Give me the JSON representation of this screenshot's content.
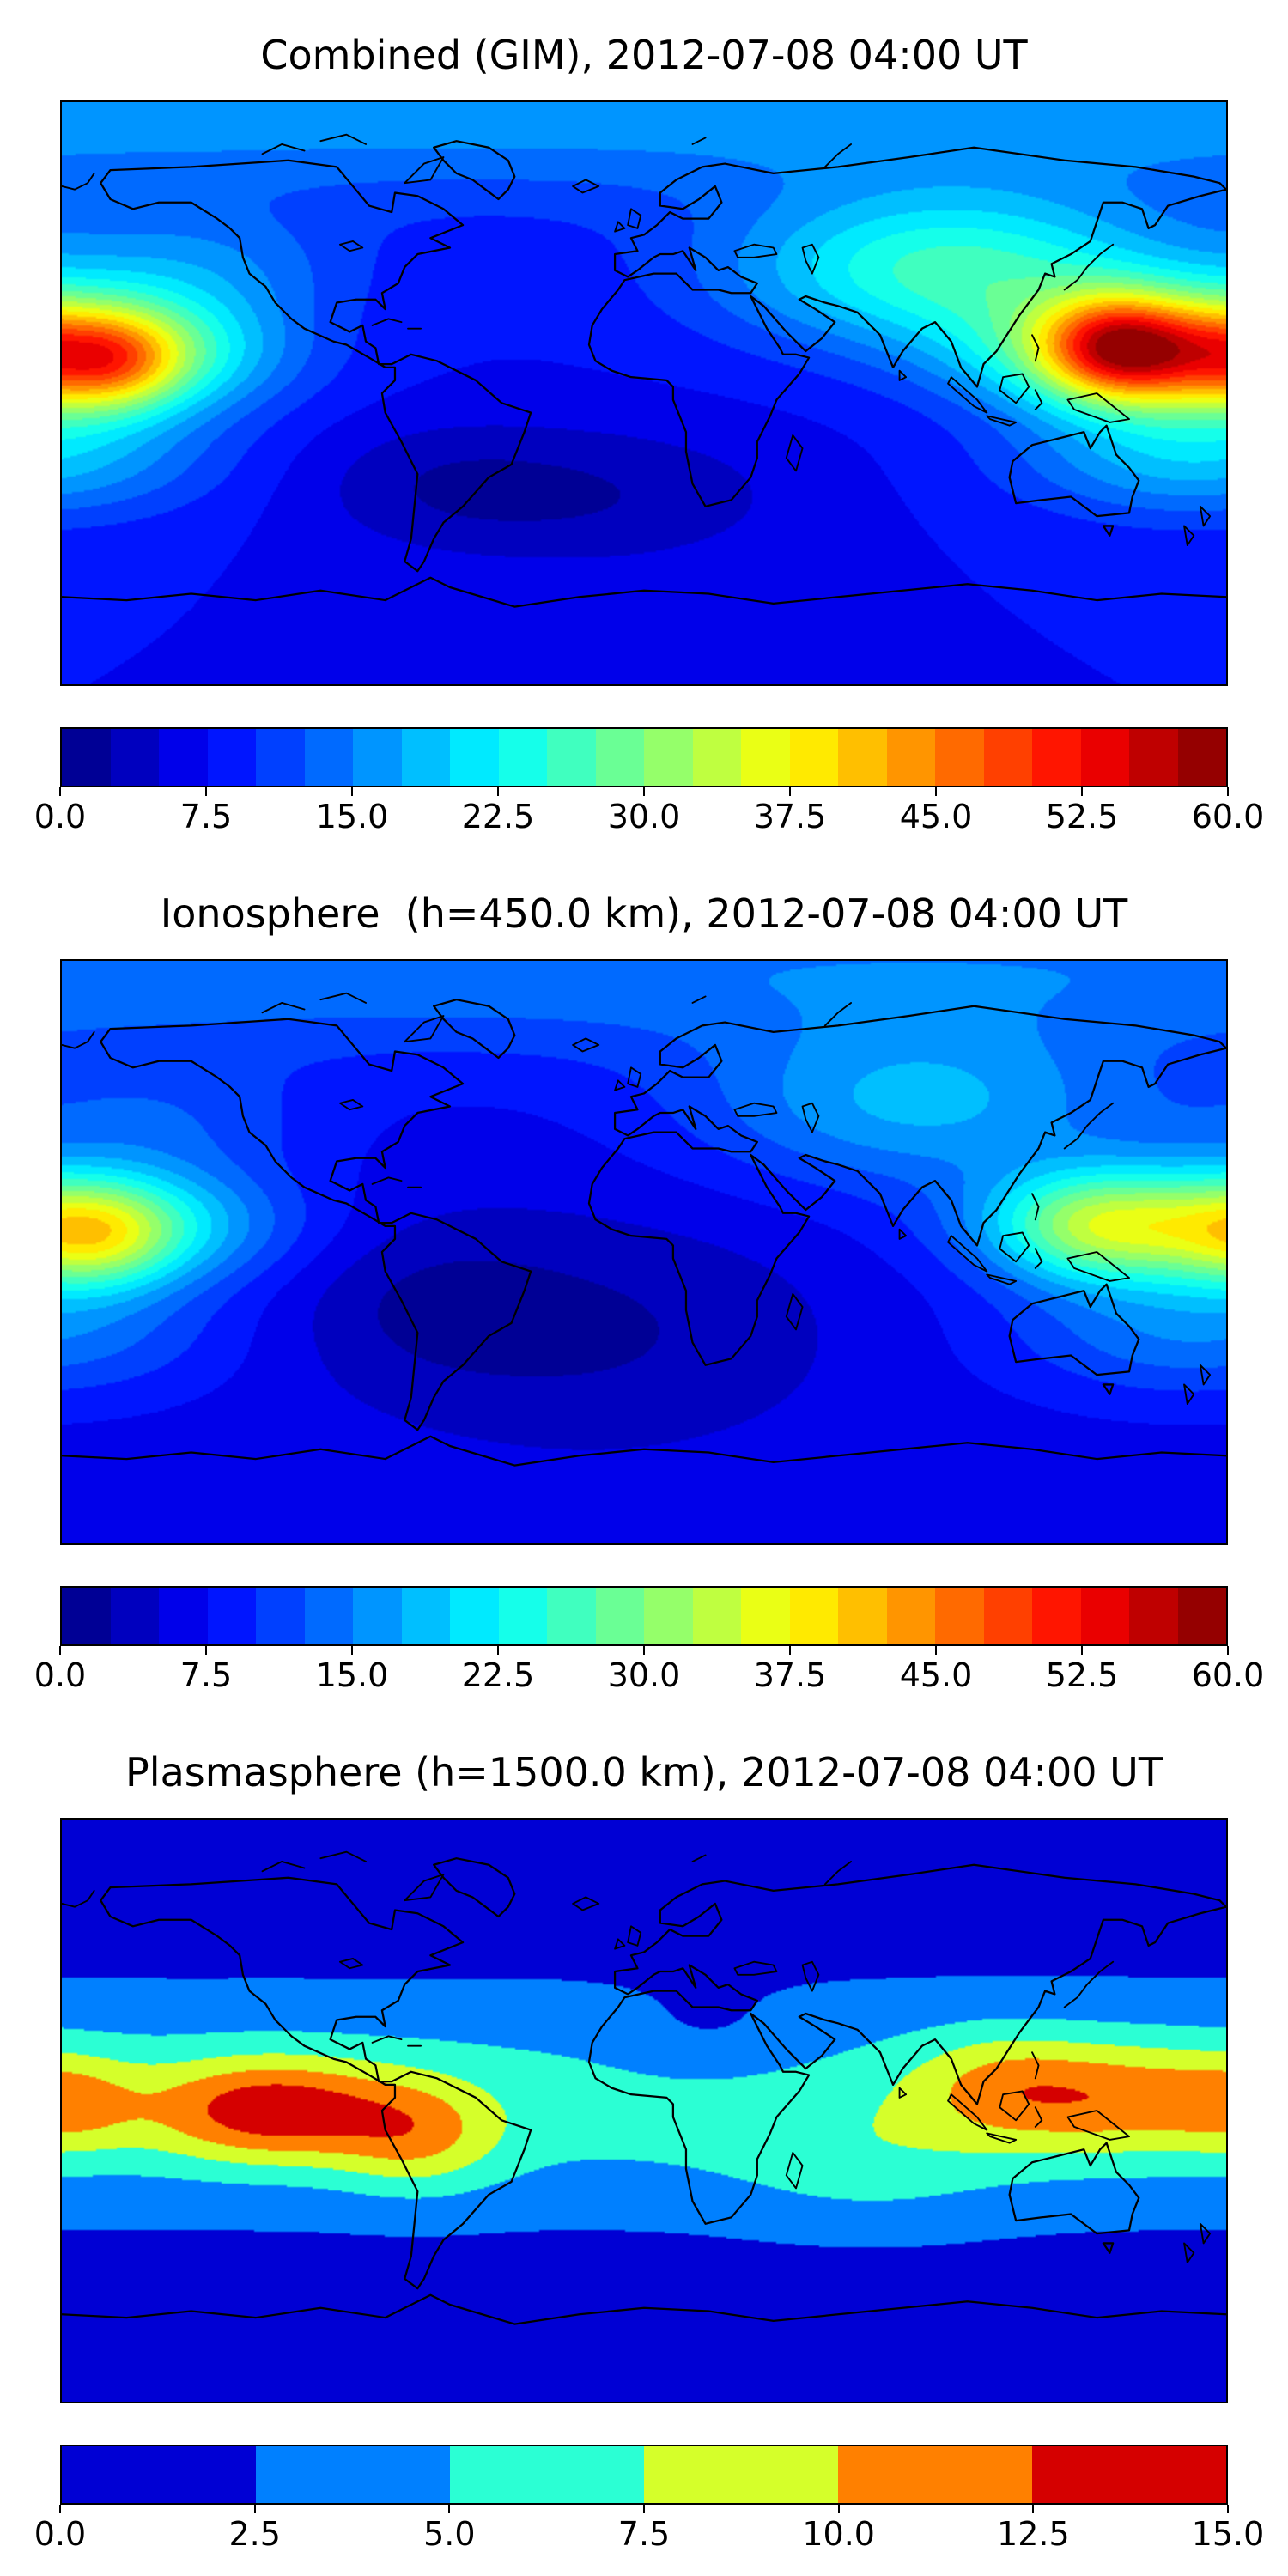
{
  "figure": {
    "background": "#ffffff",
    "text_color": "#000000",
    "frame_color": "#000000"
  },
  "chart_data": [
    {
      "type": "heatmap",
      "title": "Combined (GIM), 2012-07-08 04:00 UT",
      "projection": "equirectangular",
      "lon_range": [
        -180,
        180
      ],
      "lat_range": [
        -90,
        90
      ],
      "colormap": "jet",
      "grid": false,
      "levels": {
        "min": 0,
        "max": 60,
        "step": 2.5
      },
      "colorbar_tick_labels": [
        "0.0",
        "7.5",
        "15.0",
        "22.5",
        "30.0",
        "37.5",
        "45.0",
        "52.5",
        "60.0"
      ],
      "approx_max_value": 57,
      "approx_min_value": 3,
      "field_model": {
        "base": 7.5,
        "gaussians": [
          {
            "lon": 172,
            "lat": 12,
            "slon": 40,
            "slat": 13,
            "amp": 40
          },
          {
            "lon": 145,
            "lat": 15,
            "slon": 15,
            "slat": 11,
            "amp": 18
          },
          {
            "lon": -163,
            "lat": 9,
            "slon": 14,
            "slat": 10,
            "amp": 10
          },
          {
            "lon": 95,
            "lat": 38,
            "slon": 48,
            "slat": 17,
            "amp": 18
          },
          {
            "lon": 170,
            "lat": -20,
            "slon": 38,
            "slat": 13,
            "amp": 11
          },
          {
            "lon": -12,
            "lat": -32,
            "slon": 42,
            "slat": 16,
            "amp": -4.5
          },
          {
            "lon": -65,
            "lat": -28,
            "slon": 30,
            "slat": 14,
            "amp": -3.5
          },
          {
            "lon": 0,
            "lat": 88,
            "slon": 100000,
            "slat": 20,
            "amp": 9
          },
          {
            "lon": -140,
            "lat": 38,
            "slon": 35,
            "slat": 14,
            "amp": 7
          }
        ]
      }
    },
    {
      "type": "heatmap",
      "title": "Ionosphere  (h=450.0 km), 2012-07-08 04:00 UT",
      "projection": "equirectangular",
      "lon_range": [
        -180,
        180
      ],
      "lat_range": [
        -90,
        90
      ],
      "colormap": "jet",
      "grid": false,
      "levels": {
        "min": 0,
        "max": 60,
        "step": 2.5
      },
      "colorbar_tick_labels": [
        "0.0",
        "7.5",
        "15.0",
        "22.5",
        "30.0",
        "37.5",
        "45.0",
        "52.5",
        "60.0"
      ],
      "approx_max_value": 41,
      "approx_min_value": 2,
      "field_model": {
        "base": 6.5,
        "gaussians": [
          {
            "lon": 175,
            "lat": 8,
            "slon": 42,
            "slat": 13,
            "amp": 26
          },
          {
            "lon": 135,
            "lat": 8,
            "slon": 20,
            "slat": 12,
            "amp": 10
          },
          {
            "lon": -168,
            "lat": 4,
            "slon": 16,
            "slat": 11,
            "amp": 10
          },
          {
            "lon": 85,
            "lat": 45,
            "slon": 48,
            "slat": 18,
            "amp": 11
          },
          {
            "lon": 170,
            "lat": -25,
            "slon": 40,
            "slat": 14,
            "amp": 8
          },
          {
            "lon": -15,
            "lat": -25,
            "slon": 50,
            "slat": 25,
            "amp": -4.2
          },
          {
            "lon": -70,
            "lat": -15,
            "slon": 30,
            "slat": 18,
            "amp": -3
          },
          {
            "lon": 0,
            "lat": 88,
            "slon": 100000,
            "slat": 20,
            "amp": 8
          },
          {
            "lon": -150,
            "lat": 40,
            "slon": 35,
            "slat": 14,
            "amp": 5
          }
        ]
      }
    },
    {
      "type": "heatmap",
      "title": "Plasmasphere (h=1500.0 km), 2012-07-08 04:00 UT",
      "projection": "equirectangular",
      "lon_range": [
        -180,
        180
      ],
      "lat_range": [
        -90,
        90
      ],
      "colormap": "jet",
      "grid": false,
      "levels": {
        "min": 0,
        "max": 15,
        "step": 2.5
      },
      "colorbar_tick_labels": [
        "0.0",
        "2.5",
        "5.0",
        "7.5",
        "10.0",
        "12.5",
        "15.0"
      ],
      "approx_max_value": 14.5,
      "approx_min_value": 1.2,
      "field_model": {
        "base": 1.2,
        "gaussians": [
          {
            "lon": 0,
            "lat": 2,
            "slon": 100000,
            "slat": 24,
            "amp": 4.8
          },
          {
            "lon": -115,
            "lat": 0,
            "slon": 26,
            "slat": 11,
            "amp": 8.5
          },
          {
            "lon": -70,
            "lat": -8,
            "slon": 18,
            "slat": 12,
            "amp": 5
          },
          {
            "lon": 150,
            "lat": 4,
            "slon": 28,
            "slat": 12,
            "amp": 5.5
          },
          {
            "lon": 110,
            "lat": 8,
            "slon": 20,
            "slat": 12,
            "amp": 4
          },
          {
            "lon": -176,
            "lat": 2,
            "slon": 14,
            "slat": 10,
            "amp": 3
          },
          {
            "lon": 20,
            "lat": 22,
            "slon": 22,
            "slat": 10,
            "amp": -1.8
          },
          {
            "lon": 70,
            "lat": -18,
            "slon": 30,
            "slat": 14,
            "amp": 2
          }
        ]
      }
    }
  ]
}
